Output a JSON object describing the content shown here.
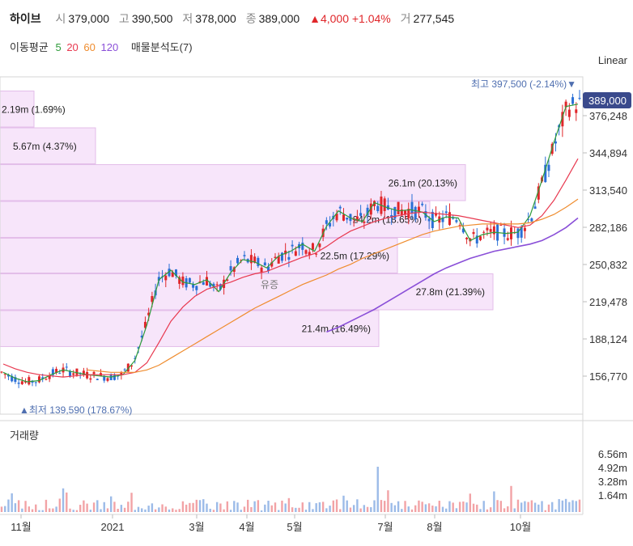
{
  "header": {
    "name": "하이브",
    "open_label": "시",
    "open": "379,000",
    "high_label": "고",
    "high": "390,500",
    "low_label": "저",
    "low": "378,000",
    "close_label": "종",
    "close": "389,000",
    "change": "▲4,000",
    "change_pct": "+1.04%",
    "volume_label": "거",
    "volume": "277,545"
  },
  "indicators": {
    "ma_label": "이동평균",
    "ma": [
      {
        "period": "5",
        "color": "#2e9b3a"
      },
      {
        "period": "20",
        "color": "#e8384f"
      },
      {
        "period": "60",
        "color": "#ef8c2e"
      },
      {
        "period": "120",
        "color": "#8a4fd8"
      }
    ],
    "volume_profile_label": "매물분석도(7)"
  },
  "scale_mode": "Linear",
  "chart_data": {
    "type": "candlestick",
    "y_ticks": [
      "376,248",
      "344,894",
      "313,540",
      "282,186",
      "250,832",
      "219,478",
      "188,124",
      "156,770"
    ],
    "current_price": "389,000",
    "max_marker": "최고 397,500 (-2.14%)▼",
    "min_marker": "▲최저 139,590 (178.67%)",
    "annotation": "유증",
    "volume_profile": [
      {
        "label": "2.19m (1.69%)",
        "price_low": 366000,
        "price_high": 397000
      },
      {
        "label": "5.67m (4.37%)",
        "price_low": 335000,
        "price_high": 366000
      },
      {
        "label": "26.1m (20.13%)",
        "price_low": 304000,
        "price_high": 335000
      },
      {
        "label": "24.2m (18.65%)",
        "price_low": 273000,
        "price_high": 304000
      },
      {
        "label": "22.5m (17.29%)",
        "price_low": 243000,
        "price_high": 273000
      },
      {
        "label": "27.8m (21.39%)",
        "price_low": 212000,
        "price_high": 243000
      },
      {
        "label": "21.4m (16.49%)",
        "price_low": 181000,
        "price_high": 212000
      }
    ],
    "volume_panel_label": "거래량",
    "volume_ticks": [
      "6.56m",
      "4.92m",
      "3.28m",
      "1.64m"
    ],
    "x_ticks": [
      "11월",
      "2021",
      "3월",
      "4월",
      "5월",
      "7월",
      "8월",
      "10월"
    ],
    "series": [
      {
        "name": "5",
        "values": [
          160000,
          155000,
          152000,
          153000,
          158000,
          162000,
          160000,
          158000,
          157000,
          156000,
          158000,
          170000,
          200000,
          238000,
          246000,
          236000,
          234000,
          238000,
          228000,
          244000,
          255000,
          253000,
          248000,
          258000,
          262000,
          268000,
          262000,
          283000,
          296000,
          290000,
          287000,
          303000,
          299000,
          296000,
          297000,
          295000,
          287000,
          291000,
          290000,
          271000,
          276000,
          278000,
          277000,
          278000,
          292000,
          322000,
          354000,
          384000,
          386000
        ]
      },
      {
        "name": "20",
        "values": [
          167000,
          163000,
          160000,
          158000,
          157000,
          156000,
          157000,
          158000,
          158000,
          158000,
          158000,
          160000,
          168000,
          185000,
          203000,
          215000,
          224000,
          230000,
          233000,
          236000,
          240000,
          243000,
          245000,
          249000,
          253000,
          257000,
          260000,
          266000,
          273000,
          279000,
          283000,
          287000,
          290000,
          292000,
          294000,
          295000,
          294000,
          293000,
          292000,
          290000,
          288000,
          286000,
          284000,
          282000,
          284000,
          292000,
          305000,
          322000,
          340000
        ]
      },
      {
        "name": "60",
        "values": [
          null,
          null,
          null,
          null,
          null,
          null,
          null,
          162000,
          161000,
          160000,
          160000,
          160000,
          162000,
          166000,
          172000,
          178000,
          184000,
          190000,
          196000,
          202000,
          208000,
          214000,
          219000,
          224000,
          229000,
          234000,
          238000,
          242000,
          247000,
          251000,
          256000,
          260000,
          264000,
          268000,
          272000,
          276000,
          279000,
          281000,
          283000,
          284000,
          285000,
          285000,
          285000,
          285000,
          286000,
          289000,
          293000,
          299000,
          306000
        ]
      },
      {
        "name": "120",
        "values": [
          null,
          null,
          null,
          null,
          null,
          null,
          null,
          null,
          null,
          null,
          null,
          null,
          null,
          null,
          null,
          null,
          null,
          null,
          null,
          null,
          null,
          null,
          null,
          null,
          null,
          null,
          null,
          194000,
          198000,
          203000,
          208000,
          213000,
          219000,
          225000,
          231000,
          237000,
          243000,
          248000,
          252000,
          256000,
          259000,
          262000,
          264000,
          266000,
          268000,
          271000,
          276000,
          282000,
          290000
        ]
      }
    ]
  }
}
